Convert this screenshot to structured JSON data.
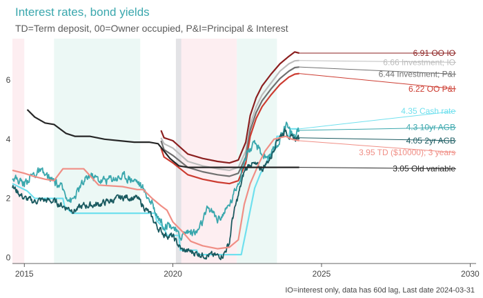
{
  "chart_data": {
    "type": "line",
    "title": "Interest rates, bond yields",
    "subtitle": "TD=Term deposit, 00=Owner occupied, P&I=Principal & Interest",
    "caption": "IO=interest only, data has 60d lag, Last date 2024-03-31",
    "xlabel": "",
    "ylabel": "",
    "xlim": [
      2014.6,
      2030.2
    ],
    "ylim": [
      -0.2,
      7.4
    ],
    "xticks": [
      "2015",
      "2020",
      "2025",
      "2030"
    ],
    "yticks": [
      "0",
      "2",
      "4",
      "6"
    ],
    "grid": false,
    "legend": "direct labels at right",
    "shaded_periods": [
      {
        "from": 2014.6,
        "to": 2015.0,
        "color": "#fdeef1"
      },
      {
        "from": 2016.0,
        "to": 2018.9,
        "color": "#ecf8f5"
      },
      {
        "from": 2020.1,
        "to": 2022.15,
        "color": "#fdeef1"
      },
      {
        "from": 2020.1,
        "to": 2020.28,
        "color": "#e3e3e6"
      },
      {
        "from": 2022.15,
        "to": 2023.5,
        "color": "#ecf8f5"
      }
    ],
    "series": [
      {
        "name": "6.91 OO IO",
        "last": 6.91,
        "color": "#8b1f1f",
        "label_y": 6.91,
        "noise": 0,
        "points": [
          [
            2019.6,
            4.3
          ],
          [
            2019.7,
            4.05
          ],
          [
            2020.0,
            3.95
          ],
          [
            2020.5,
            3.5
          ],
          [
            2021.0,
            3.35
          ],
          [
            2021.5,
            3.25
          ],
          [
            2021.9,
            3.2
          ],
          [
            2022.2,
            3.3
          ],
          [
            2022.45,
            3.9
          ],
          [
            2022.6,
            4.8
          ],
          [
            2022.8,
            5.4
          ],
          [
            2023.0,
            5.8
          ],
          [
            2023.3,
            6.2
          ],
          [
            2023.6,
            6.55
          ],
          [
            2023.9,
            6.8
          ],
          [
            2024.1,
            6.95
          ],
          [
            2024.25,
            6.91
          ]
        ]
      },
      {
        "name": "6.66 Investment; IO",
        "last": 6.66,
        "color": "#bdbdbd",
        "label_y": 6.6,
        "noise": 0,
        "points": [
          [
            2019.6,
            4.05
          ],
          [
            2019.7,
            3.85
          ],
          [
            2020.0,
            3.7
          ],
          [
            2020.5,
            3.25
          ],
          [
            2021.0,
            3.1
          ],
          [
            2021.5,
            3.0
          ],
          [
            2021.9,
            2.95
          ],
          [
            2022.2,
            3.05
          ],
          [
            2022.45,
            3.6
          ],
          [
            2022.6,
            4.5
          ],
          [
            2022.8,
            5.1
          ],
          [
            2023.0,
            5.5
          ],
          [
            2023.3,
            5.9
          ],
          [
            2023.6,
            6.3
          ],
          [
            2023.9,
            6.55
          ],
          [
            2024.1,
            6.65
          ],
          [
            2024.25,
            6.66
          ]
        ]
      },
      {
        "name": "6.44 Investment; P&I",
        "last": 6.44,
        "color": "#707070",
        "label_y": 6.2,
        "noise": 0,
        "points": [
          [
            2019.6,
            3.95
          ],
          [
            2019.7,
            3.65
          ],
          [
            2020.0,
            3.45
          ],
          [
            2020.5,
            3.05
          ],
          [
            2021.0,
            2.9
          ],
          [
            2021.5,
            2.8
          ],
          [
            2021.9,
            2.75
          ],
          [
            2022.2,
            2.85
          ],
          [
            2022.45,
            3.4
          ],
          [
            2022.6,
            4.3
          ],
          [
            2022.8,
            4.9
          ],
          [
            2023.0,
            5.3
          ],
          [
            2023.3,
            5.7
          ],
          [
            2023.6,
            6.05
          ],
          [
            2023.9,
            6.3
          ],
          [
            2024.1,
            6.42
          ],
          [
            2024.25,
            6.44
          ]
        ]
      },
      {
        "name": "6.22 OO P&I",
        "last": 6.22,
        "color": "#cc3b30",
        "label_y": 5.7,
        "noise": 0,
        "points": [
          [
            2019.6,
            3.7
          ],
          [
            2019.7,
            3.4
          ],
          [
            2020.0,
            3.2
          ],
          [
            2020.5,
            2.8
          ],
          [
            2021.0,
            2.65
          ],
          [
            2021.5,
            2.55
          ],
          [
            2021.9,
            2.5
          ],
          [
            2022.2,
            2.6
          ],
          [
            2022.45,
            3.2
          ],
          [
            2022.6,
            4.1
          ],
          [
            2022.8,
            4.7
          ],
          [
            2023.0,
            5.1
          ],
          [
            2023.3,
            5.5
          ],
          [
            2023.6,
            5.85
          ],
          [
            2023.9,
            6.1
          ],
          [
            2024.1,
            6.2
          ],
          [
            2024.25,
            6.22
          ]
        ]
      },
      {
        "name": "4.35 Cash rate",
        "last": 4.35,
        "color": "#6fe0ee",
        "label_y": 4.95,
        "noise": 0,
        "points": [
          [
            2014.6,
            2.5
          ],
          [
            2015.1,
            2.25
          ],
          [
            2015.35,
            2.0
          ],
          [
            2016.3,
            2.0
          ],
          [
            2016.35,
            1.75
          ],
          [
            2016.6,
            1.5
          ],
          [
            2019.4,
            1.5
          ],
          [
            2019.45,
            1.25
          ],
          [
            2019.7,
            1.0
          ],
          [
            2019.8,
            0.75
          ],
          [
            2020.2,
            0.75
          ],
          [
            2020.25,
            0.25
          ],
          [
            2020.8,
            0.25
          ],
          [
            2020.85,
            0.1
          ],
          [
            2022.3,
            0.1
          ],
          [
            2022.35,
            0.35
          ],
          [
            2022.45,
            0.85
          ],
          [
            2022.55,
            1.35
          ],
          [
            2022.65,
            1.85
          ],
          [
            2022.75,
            2.35
          ],
          [
            2022.85,
            2.6
          ],
          [
            2022.95,
            2.85
          ],
          [
            2023.1,
            3.1
          ],
          [
            2023.2,
            3.35
          ],
          [
            2023.4,
            3.6
          ],
          [
            2023.45,
            3.85
          ],
          [
            2023.5,
            4.1
          ],
          [
            2023.9,
            4.1
          ],
          [
            2023.95,
            4.35
          ],
          [
            2024.25,
            4.35
          ]
        ]
      },
      {
        "name": "4.3 10yr AGB",
        "last": 4.3,
        "color": "#3aa7ad",
        "label_y": 4.4,
        "noise": 0.12,
        "points": [
          [
            2014.6,
            2.75
          ],
          [
            2015.0,
            2.5
          ],
          [
            2015.2,
            2.75
          ],
          [
            2015.5,
            2.9
          ],
          [
            2015.8,
            2.7
          ],
          [
            2016.2,
            2.4
          ],
          [
            2016.6,
            1.9
          ],
          [
            2016.9,
            2.4
          ],
          [
            2017.2,
            2.8
          ],
          [
            2017.6,
            2.6
          ],
          [
            2018.0,
            2.7
          ],
          [
            2018.4,
            2.75
          ],
          [
            2018.8,
            2.6
          ],
          [
            2019.2,
            2.0
          ],
          [
            2019.5,
            1.4
          ],
          [
            2019.7,
            1.1
          ],
          [
            2020.0,
            1.1
          ],
          [
            2020.2,
            0.7
          ],
          [
            2020.5,
            0.9
          ],
          [
            2020.8,
            0.85
          ],
          [
            2021.0,
            1.2
          ],
          [
            2021.2,
            1.7
          ],
          [
            2021.5,
            1.3
          ],
          [
            2021.8,
            1.6
          ],
          [
            2022.0,
            2.0
          ],
          [
            2022.3,
            2.9
          ],
          [
            2022.5,
            3.6
          ],
          [
            2022.8,
            3.8
          ],
          [
            2023.0,
            3.5
          ],
          [
            2023.3,
            3.4
          ],
          [
            2023.6,
            4.0
          ],
          [
            2023.8,
            4.6
          ],
          [
            2023.9,
            4.3
          ],
          [
            2024.1,
            4.1
          ],
          [
            2024.25,
            4.3
          ]
        ]
      },
      {
        "name": "4.05 2yr AGB",
        "last": 4.05,
        "color": "#1a5a60",
        "label_y": 3.95,
        "noise": 0.09,
        "points": [
          [
            2014.6,
            2.4
          ],
          [
            2014.8,
            2.2
          ],
          [
            2015.0,
            2.0
          ],
          [
            2015.3,
            1.9
          ],
          [
            2015.6,
            1.95
          ],
          [
            2016.0,
            1.9
          ],
          [
            2016.4,
            1.7
          ],
          [
            2016.7,
            1.6
          ],
          [
            2017.0,
            1.75
          ],
          [
            2017.5,
            1.8
          ],
          [
            2018.0,
            1.95
          ],
          [
            2018.4,
            2.05
          ],
          [
            2018.8,
            2.0
          ],
          [
            2019.2,
            1.5
          ],
          [
            2019.5,
            1.0
          ],
          [
            2019.7,
            0.8
          ],
          [
            2020.0,
            0.7
          ],
          [
            2020.3,
            0.25
          ],
          [
            2020.6,
            0.2
          ],
          [
            2021.0,
            0.1
          ],
          [
            2021.5,
            0.05
          ],
          [
            2021.7,
            0.1
          ],
          [
            2021.9,
            0.5
          ],
          [
            2022.0,
            1.3
          ],
          [
            2022.2,
            2.1
          ],
          [
            2022.4,
            2.9
          ],
          [
            2022.6,
            3.2
          ],
          [
            2022.8,
            3.1
          ],
          [
            2023.0,
            3.0
          ],
          [
            2023.3,
            3.4
          ],
          [
            2023.5,
            4.0
          ],
          [
            2023.8,
            4.3
          ],
          [
            2024.0,
            4.0
          ],
          [
            2024.25,
            4.05
          ]
        ]
      },
      {
        "name": "3.95 TD ($10000); 3 years",
        "last": 3.95,
        "color": "#f08e85",
        "label_y": 3.55,
        "noise": 0,
        "points": [
          [
            2014.6,
            2.95
          ],
          [
            2015.0,
            2.85
          ],
          [
            2015.3,
            2.75
          ],
          [
            2015.7,
            2.65
          ],
          [
            2016.0,
            2.6
          ],
          [
            2016.3,
            3.0
          ],
          [
            2016.6,
            3.0
          ],
          [
            2017.0,
            3.0
          ],
          [
            2017.5,
            2.45
          ],
          [
            2018.3,
            2.4
          ],
          [
            2018.8,
            2.3
          ],
          [
            2019.0,
            2.3
          ],
          [
            2019.3,
            2.0
          ],
          [
            2019.6,
            1.75
          ],
          [
            2019.8,
            1.6
          ],
          [
            2020.0,
            1.2
          ],
          [
            2020.3,
            0.9
          ],
          [
            2020.6,
            0.55
          ],
          [
            2021.0,
            0.4
          ],
          [
            2021.5,
            0.3
          ],
          [
            2021.9,
            0.35
          ],
          [
            2022.2,
            0.6
          ],
          [
            2022.4,
            1.8
          ],
          [
            2022.6,
            2.5
          ],
          [
            2022.9,
            3.2
          ],
          [
            2023.1,
            3.6
          ],
          [
            2023.4,
            4.0
          ],
          [
            2023.8,
            4.1
          ],
          [
            2024.0,
            4.0
          ],
          [
            2024.25,
            3.95
          ]
        ]
      },
      {
        "name": "3.05 Old variable",
        "last": 3.05,
        "color": "#262626",
        "label_y": 3.0,
        "noise": 0,
        "points": [
          [
            2015.1,
            5.0
          ],
          [
            2015.35,
            4.75
          ],
          [
            2015.7,
            4.55
          ],
          [
            2016.0,
            4.5
          ],
          [
            2016.4,
            4.2
          ],
          [
            2016.7,
            4.1
          ],
          [
            2017.2,
            4.1
          ],
          [
            2017.7,
            4.0
          ],
          [
            2018.2,
            3.95
          ],
          [
            2018.7,
            3.9
          ],
          [
            2019.2,
            3.9
          ],
          [
            2019.5,
            3.85
          ],
          [
            2019.7,
            3.6
          ],
          [
            2019.9,
            3.35
          ],
          [
            2020.2,
            3.1
          ],
          [
            2020.5,
            3.05
          ],
          [
            2021.0,
            3.05
          ],
          [
            2022.0,
            3.05
          ],
          [
            2023.0,
            3.05
          ],
          [
            2024.25,
            3.05
          ]
        ]
      }
    ]
  }
}
